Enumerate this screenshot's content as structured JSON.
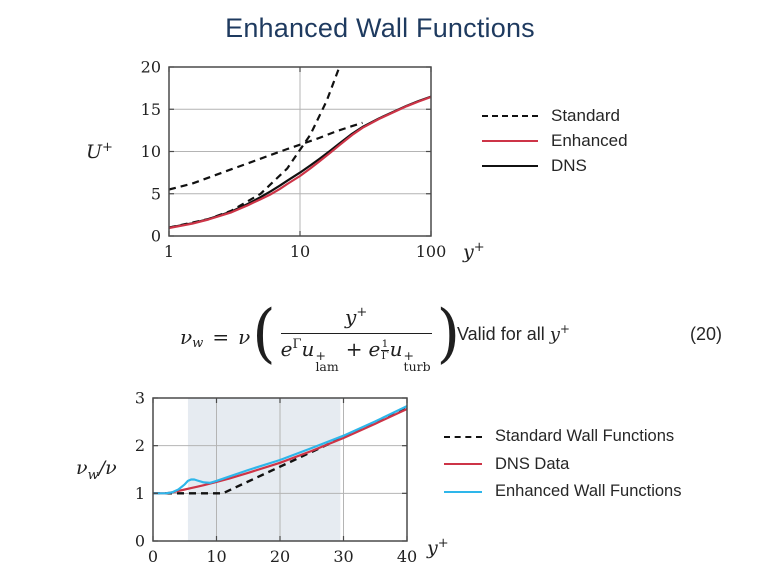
{
  "title": "Enhanced Wall Functions",
  "equation": {
    "lhs_symbol": "ν",
    "lhs_sub": "w",
    "equals": "=",
    "coeff": "ν",
    "paren_open": "(",
    "paren_close": ")",
    "numerator_base": "y",
    "numerator_sup": "+",
    "den_e1": "e",
    "den_e1_sup": "Γ",
    "den_u1": "u",
    "den_u1_sup": "+",
    "den_u1_sub": "lam",
    "den_plus": "+",
    "den_e2": "e",
    "den_e2_sup_num": "1",
    "den_e2_sup_den": "Γ",
    "den_u2": "u",
    "den_u2_sup": "+",
    "den_u2_sub": "turb",
    "validity": "Valid for all",
    "validity_var": "y",
    "validity_var_sup": "+",
    "number": "(20)"
  },
  "chart_data": [
    {
      "id": "u-plus-vs-y-plus",
      "type": "line",
      "x_scale": "log",
      "xlim": [
        1,
        100
      ],
      "ylim": [
        0,
        20
      ],
      "x_ticks": [
        1,
        10,
        100
      ],
      "y_ticks": [
        0,
        5,
        10,
        15,
        20
      ],
      "grid_x": [
        10
      ],
      "grid_y": [
        5,
        10,
        15
      ],
      "xlabel": "y+",
      "ylabel": "U+",
      "xlabel_base": "y",
      "xlabel_sup": "+",
      "ylabel_base": "U",
      "ylabel_sup": "+",
      "legend_position": "right",
      "legend": [
        {
          "label": "Standard",
          "color": "#111111",
          "dash": true
        },
        {
          "label": "Enhanced",
          "color": "#cd3447",
          "dash": false
        },
        {
          "label": "DNS",
          "color": "#111111",
          "dash": false
        }
      ],
      "series": [
        {
          "name": "standard-linear-sublayer-law",
          "legend": "Standard",
          "color": "#111111",
          "dash": true,
          "width": 2.2,
          "points": [
            [
              1,
              1
            ],
            [
              2,
              2
            ],
            [
              3,
              3
            ],
            [
              5,
              5
            ],
            [
              8,
              8
            ],
            [
              12,
              12
            ],
            [
              16,
              16
            ],
            [
              20,
              20
            ]
          ]
        },
        {
          "name": "standard-log-law",
          "legend": "Standard",
          "color": "#111111",
          "dash": true,
          "width": 2.2,
          "points": [
            [
              1,
              5.5
            ],
            [
              1.5,
              6.2
            ],
            [
              2,
              6.9
            ],
            [
              3,
              7.9
            ],
            [
              4,
              8.6
            ],
            [
              6,
              9.6
            ],
            [
              8,
              10.3
            ],
            [
              10,
              10.8
            ],
            [
              14,
              11.6
            ],
            [
              19,
              12.4
            ],
            [
              25,
              13.0
            ],
            [
              30,
              13.4
            ]
          ]
        },
        {
          "name": "dns",
          "legend": "DNS",
          "color": "#111111",
          "dash": false,
          "width": 2.2,
          "points": [
            [
              1,
              1
            ],
            [
              1.5,
              1.5
            ],
            [
              2,
              2
            ],
            [
              3,
              2.9
            ],
            [
              4,
              3.8
            ],
            [
              5,
              4.6
            ],
            [
              6,
              5.3
            ],
            [
              7,
              5.95
            ],
            [
              8,
              6.55
            ],
            [
              10,
              7.5
            ],
            [
              12,
              8.35
            ],
            [
              14,
              9.1
            ],
            [
              17,
              10.1
            ],
            [
              20,
              10.95
            ],
            [
              25,
              12.1
            ],
            [
              30,
              12.9
            ],
            [
              40,
              13.9
            ],
            [
              50,
              14.6
            ],
            [
              65,
              15.4
            ],
            [
              80,
              15.95
            ],
            [
              100,
              16.5
            ]
          ]
        },
        {
          "name": "enhanced",
          "legend": "Enhanced",
          "color": "#cd3447",
          "dash": false,
          "width": 2.2,
          "points": [
            [
              1,
              0.95
            ],
            [
              1.5,
              1.45
            ],
            [
              2,
              1.95
            ],
            [
              3,
              2.8
            ],
            [
              4,
              3.65
            ],
            [
              5,
              4.35
            ],
            [
              6,
              4.95
            ],
            [
              7,
              5.55
            ],
            [
              8,
              6.15
            ],
            [
              10,
              7.1
            ],
            [
              12,
              8.0
            ],
            [
              14,
              8.8
            ],
            [
              17,
              9.85
            ],
            [
              20,
              10.75
            ],
            [
              25,
              11.95
            ],
            [
              30,
              12.8
            ],
            [
              40,
              13.85
            ],
            [
              50,
              14.55
            ],
            [
              65,
              15.35
            ],
            [
              80,
              15.9
            ],
            [
              100,
              16.45
            ]
          ]
        }
      ]
    },
    {
      "id": "viscosity-ratio-vs-y-plus",
      "type": "line",
      "x_scale": "linear",
      "xlim": [
        0,
        40
      ],
      "ylim": [
        0,
        3
      ],
      "x_ticks": [
        0,
        10,
        20,
        30,
        40
      ],
      "y_ticks": [
        0,
        1,
        2,
        3
      ],
      "grid_x": [
        10,
        20,
        30
      ],
      "grid_y": [
        1,
        2
      ],
      "band": {
        "x0": 5.5,
        "x1": 29.5,
        "color": "#e6ebf1"
      },
      "xlabel": "y+",
      "ylabel": "νw/ν",
      "xlabel_base": "y",
      "xlabel_sup": "+",
      "ylabel_nu": "ν",
      "ylabel_sub": "w",
      "ylabel_rest": "/ν",
      "legend_position": "right",
      "legend": [
        {
          "label": "Standard Wall Functions",
          "color": "#111111",
          "dash": true
        },
        {
          "label": "DNS Data",
          "color": "#cd3447",
          "dash": false
        },
        {
          "label": "Enhanced Wall Functions",
          "color": "#2eb6ea",
          "dash": false
        }
      ],
      "series": [
        {
          "name": "standard-wall-functions",
          "legend": "Standard Wall Functions",
          "color": "#111111",
          "dash": true,
          "width": 2.4,
          "points": [
            [
              0,
              1
            ],
            [
              5,
              1
            ],
            [
              11,
              1
            ],
            [
              40,
              2.8
            ]
          ]
        },
        {
          "name": "dns-data",
          "legend": "DNS Data",
          "color": "#cd3447",
          "dash": false,
          "width": 2.2,
          "points": [
            [
              0,
              1
            ],
            [
              2,
              1
            ],
            [
              3,
              1.02
            ],
            [
              4,
              1.05
            ],
            [
              5,
              1.08
            ],
            [
              6,
              1.11
            ],
            [
              7,
              1.14
            ],
            [
              8,
              1.17
            ],
            [
              10,
              1.24
            ],
            [
              12,
              1.31
            ],
            [
              15,
              1.43
            ],
            [
              20,
              1.64
            ],
            [
              25,
              1.89
            ],
            [
              30,
              2.16
            ],
            [
              35,
              2.46
            ],
            [
              40,
              2.77
            ]
          ]
        },
        {
          "name": "enhanced-wall-functions",
          "legend": "Enhanced Wall Functions",
          "color": "#2eb6ea",
          "dash": false,
          "width": 2.2,
          "points": [
            [
              0,
              1
            ],
            [
              2,
              1
            ],
            [
              3,
              1.02
            ],
            [
              4,
              1.08
            ],
            [
              5,
              1.19
            ],
            [
              5.5,
              1.26
            ],
            [
              6,
              1.29
            ],
            [
              6.5,
              1.29
            ],
            [
              7,
              1.27
            ],
            [
              8,
              1.23
            ],
            [
              9,
              1.22
            ],
            [
              10,
              1.26
            ],
            [
              12,
              1.35
            ],
            [
              15,
              1.49
            ],
            [
              20,
              1.7
            ],
            [
              25,
              1.95
            ],
            [
              30,
              2.21
            ],
            [
              35,
              2.51
            ],
            [
              40,
              2.83
            ]
          ]
        }
      ]
    }
  ]
}
